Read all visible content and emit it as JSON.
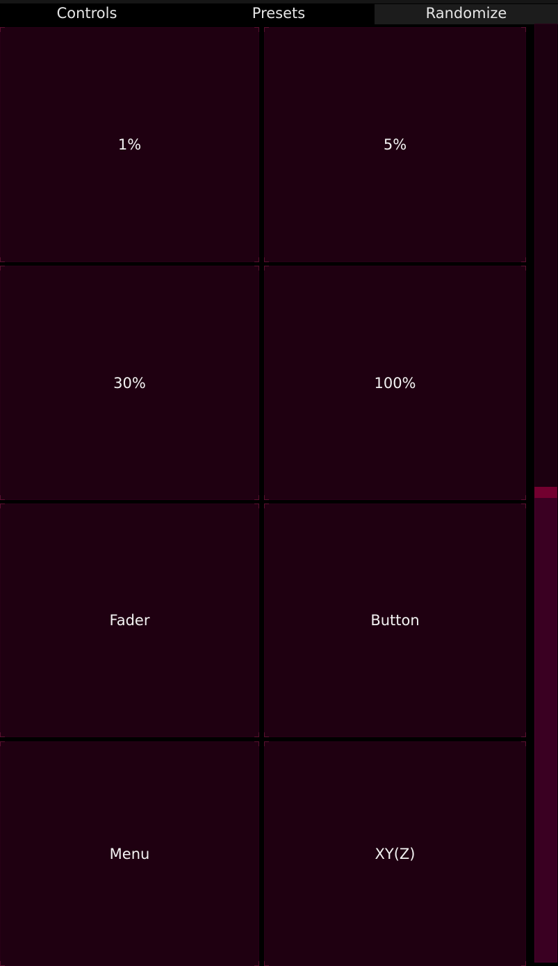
{
  "tabs": {
    "controls": "Controls",
    "presets": "Presets",
    "randomize": "Randomize",
    "active": "Randomize"
  },
  "grid": {
    "cells": [
      {
        "label": "1%"
      },
      {
        "label": "5%"
      },
      {
        "label": "30%"
      },
      {
        "label": "100%"
      },
      {
        "label": "Fader"
      },
      {
        "label": "Button"
      },
      {
        "label": "Menu"
      },
      {
        "label": "XY(Z)"
      }
    ]
  },
  "scroll": {
    "position_fraction": 0.49,
    "visible_fraction": 0.51
  },
  "colors": {
    "background": "#000000",
    "cell_background": "#1f0011",
    "accent": "#72002f",
    "scroll_thumb": "#3a0022",
    "active_tab": "#1c1c1c",
    "text": "#f2f2f2"
  }
}
